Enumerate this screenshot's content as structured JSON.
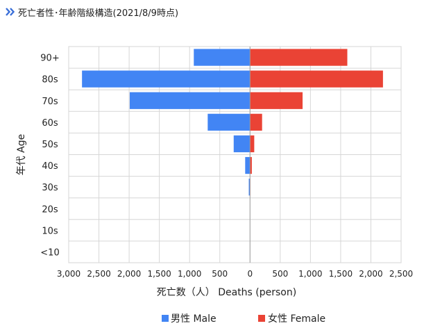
{
  "header": {
    "icon": "double-chevron-right-icon",
    "title": "死亡者性･年齢階級構造(2021/8/9時点)"
  },
  "chart_data": {
    "type": "bar",
    "orientation": "horizontal-population-pyramid",
    "categories": [
      "90+",
      "80s",
      "70s",
      "60s",
      "50s",
      "40s",
      "30s",
      "20s",
      "10s",
      "<10"
    ],
    "series": [
      {
        "name": "男性 Male",
        "color": "#4285f4",
        "values": [
          930,
          2780,
          1990,
          700,
          270,
          80,
          20,
          0,
          0,
          0
        ]
      },
      {
        "name": "女性 Female",
        "color": "#ea4335",
        "values": [
          1610,
          2200,
          870,
          200,
          70,
          30,
          5,
          0,
          0,
          0
        ]
      }
    ],
    "xlabel": "死亡数（人） Deaths (person)",
    "ylabel": "年代 Age",
    "xlim": [
      -3000,
      2500
    ],
    "xticks": [
      {
        "v": -3000,
        "label": "3,000"
      },
      {
        "v": -2500,
        "label": "2,500"
      },
      {
        "v": -2000,
        "label": "2,000"
      },
      {
        "v": -1500,
        "label": "1,500"
      },
      {
        "v": -1000,
        "label": "1,000"
      },
      {
        "v": -500,
        "label": "500"
      },
      {
        "v": 0,
        "label": "0"
      },
      {
        "v": 500,
        "label": "500"
      },
      {
        "v": 1000,
        "label": "1,000"
      },
      {
        "v": 1500,
        "label": "1,500"
      },
      {
        "v": 2000,
        "label": "2,000"
      },
      {
        "v": 2500,
        "label": "2,500"
      }
    ],
    "grid": true,
    "legend_position": "bottom"
  }
}
